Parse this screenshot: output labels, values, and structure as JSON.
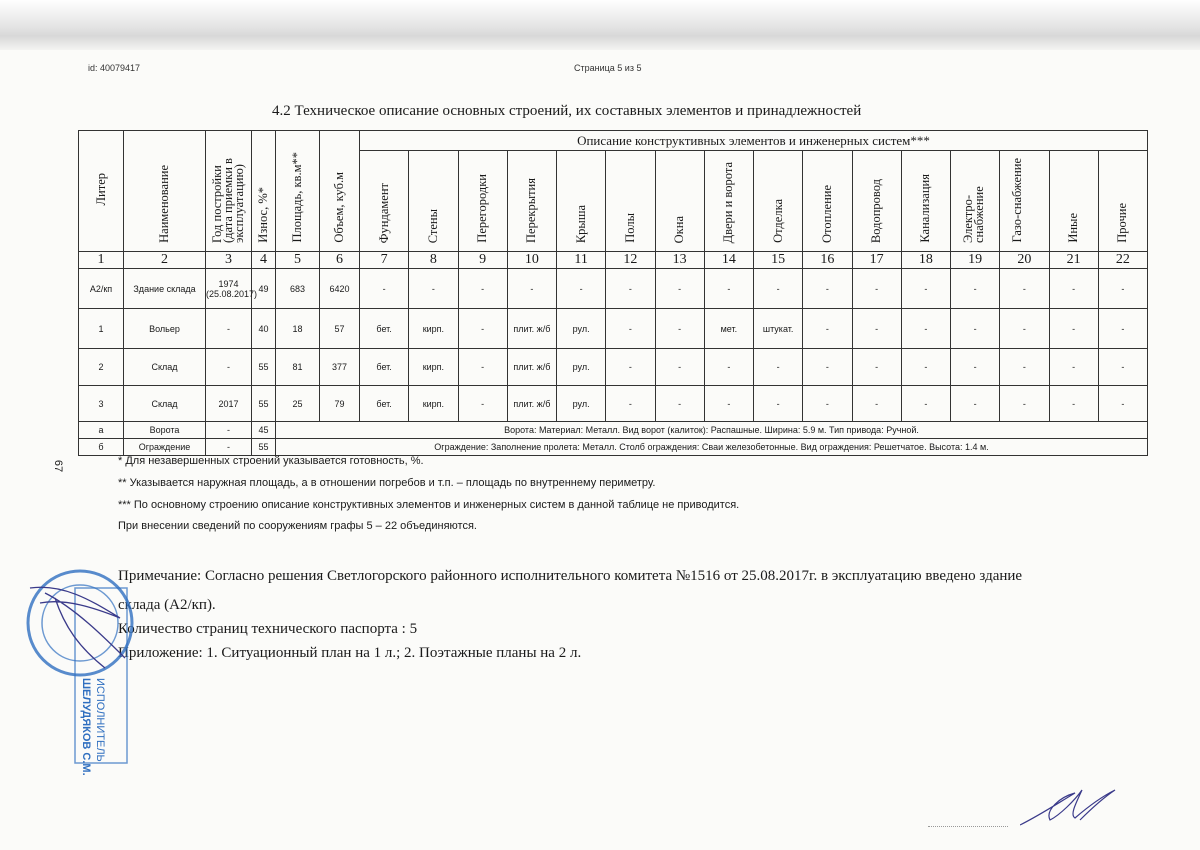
{
  "header": {
    "doc_id": "id: 40079417",
    "page": "Страница 5 из 5"
  },
  "title": "4.2 Техническое описание основных строений, их составных элементов и принадлежностей",
  "table": {
    "group_header": "Описание конструктивных элементов и инженерных систем***",
    "columns": [
      "Литер",
      "Наименование",
      "Год постройки (дата приемки в эксплуатацию)",
      "Износ, %*",
      "Площадь, кв.м**",
      "Объем, куб.м",
      "Фундамент",
      "Стены",
      "Перегородки",
      "Перекрытия",
      "Крыша",
      "Полы",
      "Окна",
      "Двери и ворота",
      "Отделка",
      "Отопление",
      "Водопровод",
      "Канализация",
      "Электро-снабжение",
      "Газо-снабжение",
      "Иные",
      "Прочие"
    ],
    "column_numbers": [
      "1",
      "2",
      "3",
      "4",
      "5",
      "6",
      "7",
      "8",
      "9",
      "10",
      "11",
      "12",
      "13",
      "14",
      "15",
      "16",
      "17",
      "18",
      "19",
      "20",
      "21",
      "22"
    ],
    "rows": [
      [
        "А2/кп",
        "Здание склада",
        "1974 (25.08.2017)",
        "49",
        "683",
        "6420",
        "-",
        "-",
        "-",
        "-",
        "-",
        "-",
        "-",
        "-",
        "-",
        "-",
        "-",
        "-",
        "-",
        "-",
        "-",
        "-"
      ],
      [
        "1",
        "Вольер",
        "-",
        "40",
        "18",
        "57",
        "бет.",
        "кирп.",
        "-",
        "плит. ж/б",
        "рул.",
        "-",
        "-",
        "мет.",
        "штукат.",
        "-",
        "-",
        "-",
        "-",
        "-",
        "-",
        "-"
      ],
      [
        "2",
        "Склад",
        "-",
        "55",
        "81",
        "377",
        "бет.",
        "кирп.",
        "-",
        "плит. ж/б",
        "рул.",
        "-",
        "-",
        "-",
        "-",
        "-",
        "-",
        "-",
        "-",
        "-",
        "-",
        "-"
      ],
      [
        "3",
        "Склад",
        "2017",
        "55",
        "25",
        "79",
        "бет.",
        "кирп.",
        "-",
        "плит. ж/б",
        "рул.",
        "-",
        "-",
        "-",
        "-",
        "-",
        "-",
        "-",
        "-",
        "-",
        "-",
        "-"
      ]
    ],
    "merged_rows": [
      {
        "liter": "а",
        "name": "Ворота",
        "year": "-",
        "wear": "45",
        "description": "Ворота: Материал: Металл. Вид ворот (калиток): Распашные. Ширина: 5.9 м. Тип привода: Ручной."
      },
      {
        "liter": "б",
        "name": "Ограждение",
        "year": "-",
        "wear": "55",
        "description": "Ограждение: Заполнение пролета: Металл. Столб ограждения: Сваи железобетонные. Вид ограждения: Решетчатое. Высота: 1.4 м."
      }
    ]
  },
  "footnotes": [
    "* Для незавершенных строений указывается готовность, %.",
    "** Указывается наружная площадь, а в отношении погребов и т.п. – площадь по внутреннему периметру.",
    "*** По основному строению описание конструктивных элементов и инженерных систем в данной таблице не приводится.",
    "При внесении сведений по сооружениям  графы 5 – 22 объединяются."
  ],
  "remarks": {
    "note_line1": "Примечание: Согласно решения Светлогорского районного исполнительного комитета №1516 от 25.08.2017г. в эксплуатацию введено здание",
    "note_line2": "склада (А2/кп).",
    "pages": "Количество страниц технического паспорта : 5",
    "appendix": "Приложение: 1. Ситуационный план  на 1 л.; 2. Поэтажные планы  на 2 л."
  },
  "margin_number": "67",
  "stamp": {
    "text": "ИСПОЛНИТЕЛЬ ШЕЛУДЯКОВ С.М.",
    "color": "#2f6fc0"
  },
  "colors": {
    "ink": "#1a1a1a",
    "stamp": "#2f6fc0",
    "signature": "#3a3a8a"
  }
}
